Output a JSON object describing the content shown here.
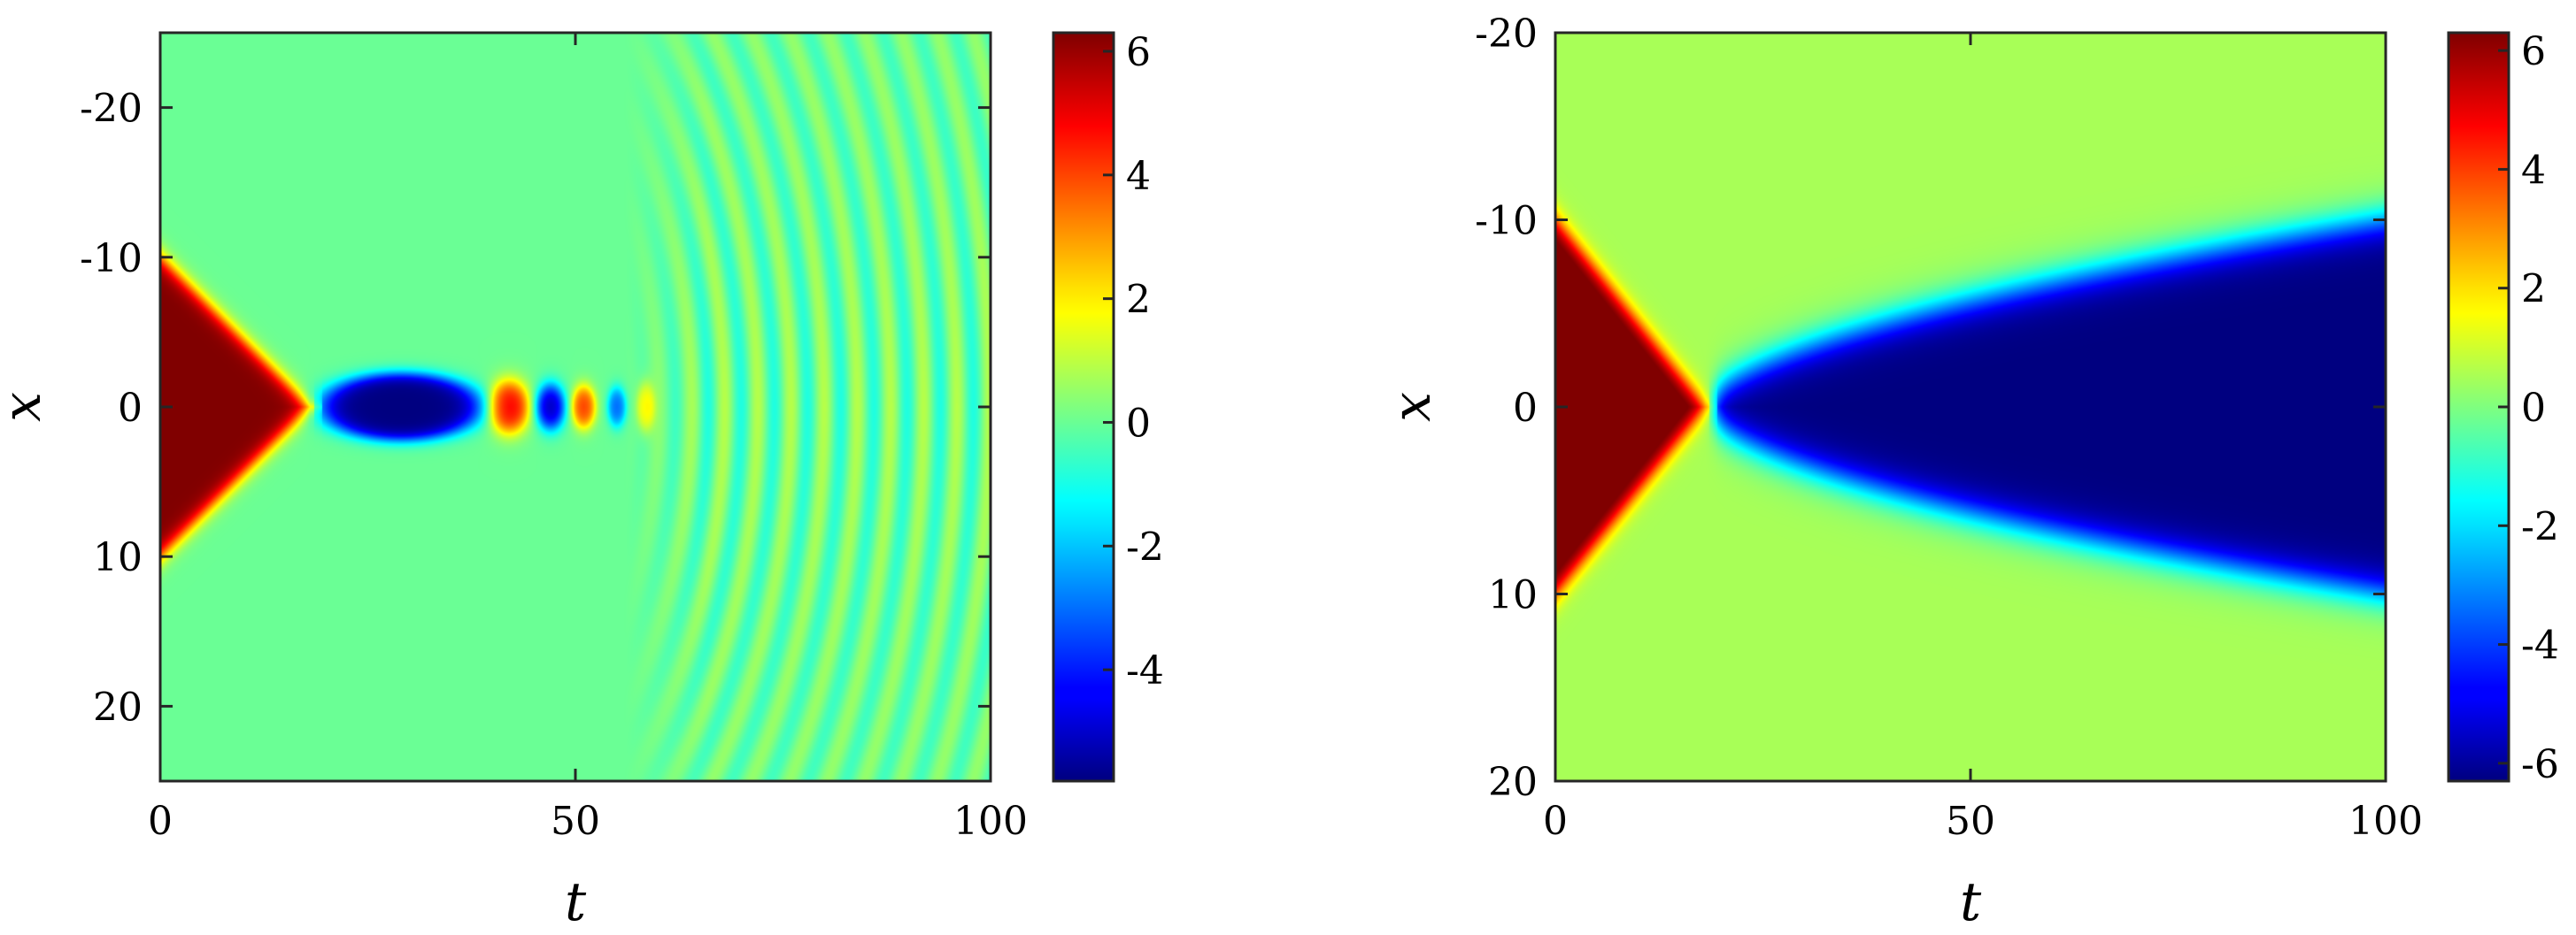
{
  "chart_data": [
    {
      "type": "heatmap",
      "panel": "left",
      "xlabel": "t",
      "ylabel": "x",
      "xlim": [
        0,
        100
      ],
      "ylim": [
        -25,
        25
      ],
      "y_reversed": true,
      "xticks": [
        0,
        50,
        100
      ],
      "yticks": [
        -20,
        -10,
        0,
        10,
        20
      ],
      "colormap": "jet",
      "clim": [
        -5.8,
        6.3
      ],
      "colorbar_ticks": [
        -4,
        -2,
        0,
        2,
        4,
        6
      ],
      "grid": false,
      "features": [
        {
          "kind": "triangle",
          "value": 6.3,
          "t_range": [
            0,
            18
          ],
          "x_halfwidth_at_t0": 10
        },
        {
          "kind": "ellipse",
          "value": -5.8,
          "t_center": 29,
          "t_halfwidth": 9.5,
          "x_halfwidth": 2.2
        },
        {
          "kind": "blob",
          "value": 5.0,
          "t_center": 42,
          "t_halfwidth": 2.2,
          "x_halfwidth": 1.6
        },
        {
          "kind": "blob",
          "value": -5.0,
          "t_center": 47,
          "t_halfwidth": 1.6,
          "x_halfwidth": 1.4
        },
        {
          "kind": "blob",
          "value": 4.0,
          "t_center": 51,
          "t_halfwidth": 1.3,
          "x_halfwidth": 1.3
        },
        {
          "kind": "blob",
          "value": -3.0,
          "t_center": 55,
          "t_halfwidth": 1.0,
          "x_halfwidth": 1.2
        },
        {
          "kind": "blob",
          "value": 2.0,
          "t_center": 58.5,
          "t_halfwidth": 1.0,
          "x_halfwidth": 1.5
        },
        {
          "kind": "arcs",
          "t_center": 20,
          "start_t": 60,
          "end_t": 100,
          "wavelength_t": 4,
          "amplitude": 0.9
        }
      ]
    },
    {
      "type": "heatmap",
      "panel": "right",
      "xlabel": "t",
      "ylabel": "x",
      "xlim": [
        0,
        100
      ],
      "ylim": [
        -20,
        20
      ],
      "y_reversed": true,
      "xticks": [
        0,
        50,
        100
      ],
      "yticks": [
        -20,
        -10,
        0,
        10,
        20
      ],
      "colormap": "jet",
      "clim": [
        -6.3,
        6.3
      ],
      "colorbar_ticks": [
        -6,
        -4,
        -2,
        0,
        2,
        4,
        6
      ],
      "grid": false,
      "background_value": 0.5,
      "features": [
        {
          "kind": "triangle",
          "value": 6.3,
          "t_range": [
            0,
            18
          ],
          "x_halfwidth_at_t0": 10
        },
        {
          "kind": "wedge",
          "value": -6.3,
          "t_start": 18,
          "t_end": 100,
          "x_halfwidth_at_end": 10
        }
      ]
    }
  ]
}
